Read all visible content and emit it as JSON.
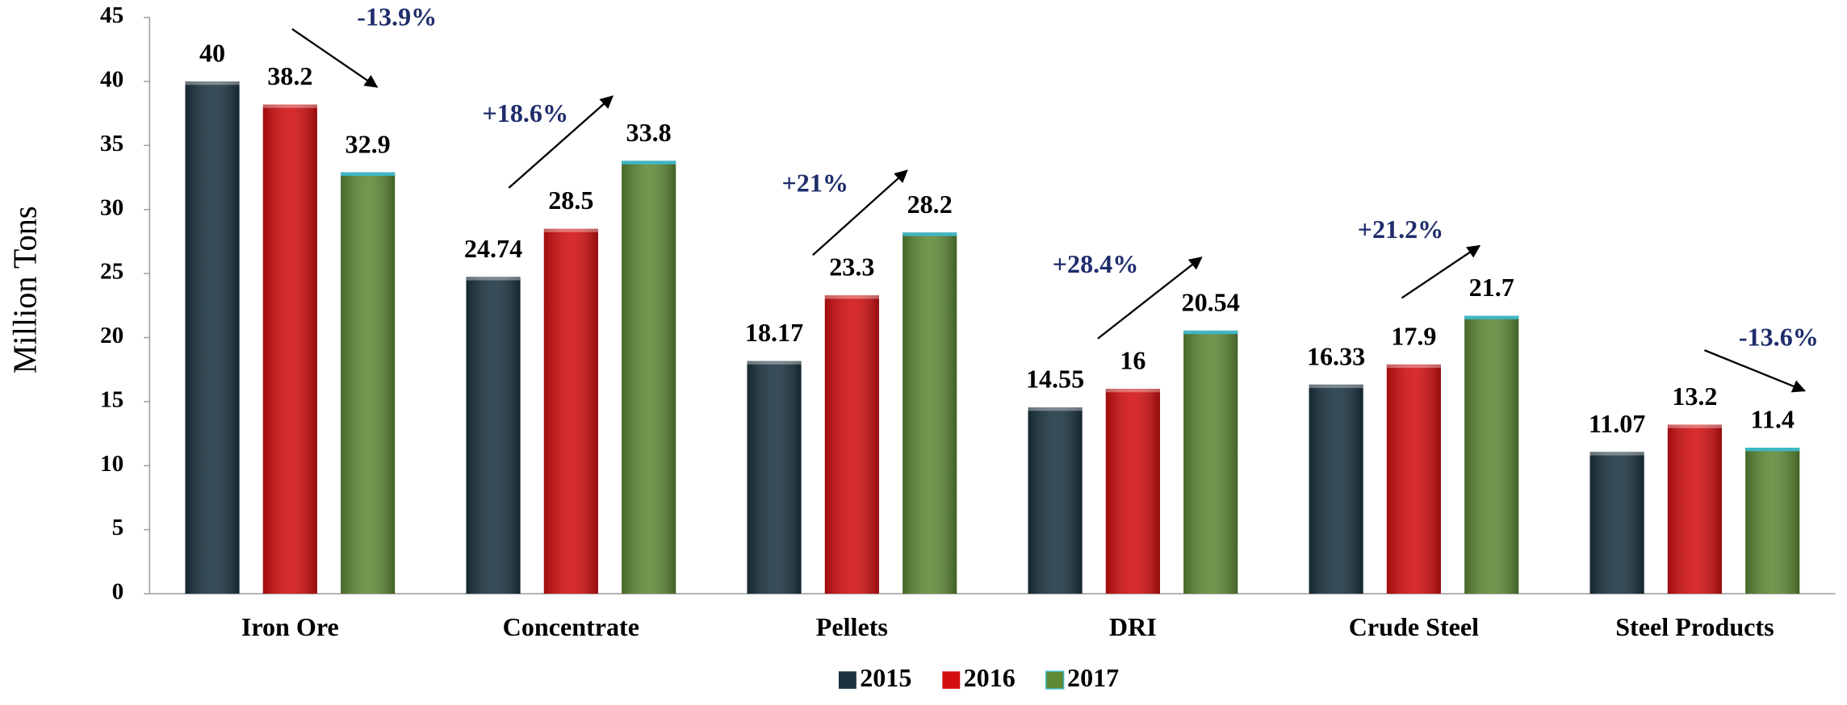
{
  "chart_data": {
    "type": "bar",
    "y_label": "Million Tons",
    "categories": [
      "Iron Ore",
      "Concentrate",
      "Pellets",
      "DRI",
      "Crude Steel",
      "Steel Products"
    ],
    "series": [
      {
        "name": "2015",
        "color": "#1b3440",
        "values": [
          40,
          24.74,
          18.17,
          14.55,
          16.33,
          11.07
        ]
      },
      {
        "name": "2016",
        "color": "#d40f10",
        "values": [
          38.2,
          28.5,
          23.3,
          16,
          17.9,
          13.2
        ]
      },
      {
        "name": "2017",
        "color": "#5e8a36",
        "values": [
          32.9,
          33.8,
          28.2,
          20.54,
          21.7,
          11.4
        ]
      }
    ],
    "annotations": [
      "-13.9%",
      "+18.6%",
      "+21%",
      "+28.4%",
      "+21.2%",
      "-13.6%"
    ],
    "ylim": [
      0,
      45
    ],
    "yticks": [
      0,
      5,
      10,
      15,
      20,
      25,
      30,
      35,
      40,
      45
    ],
    "legend": "bottom"
  }
}
